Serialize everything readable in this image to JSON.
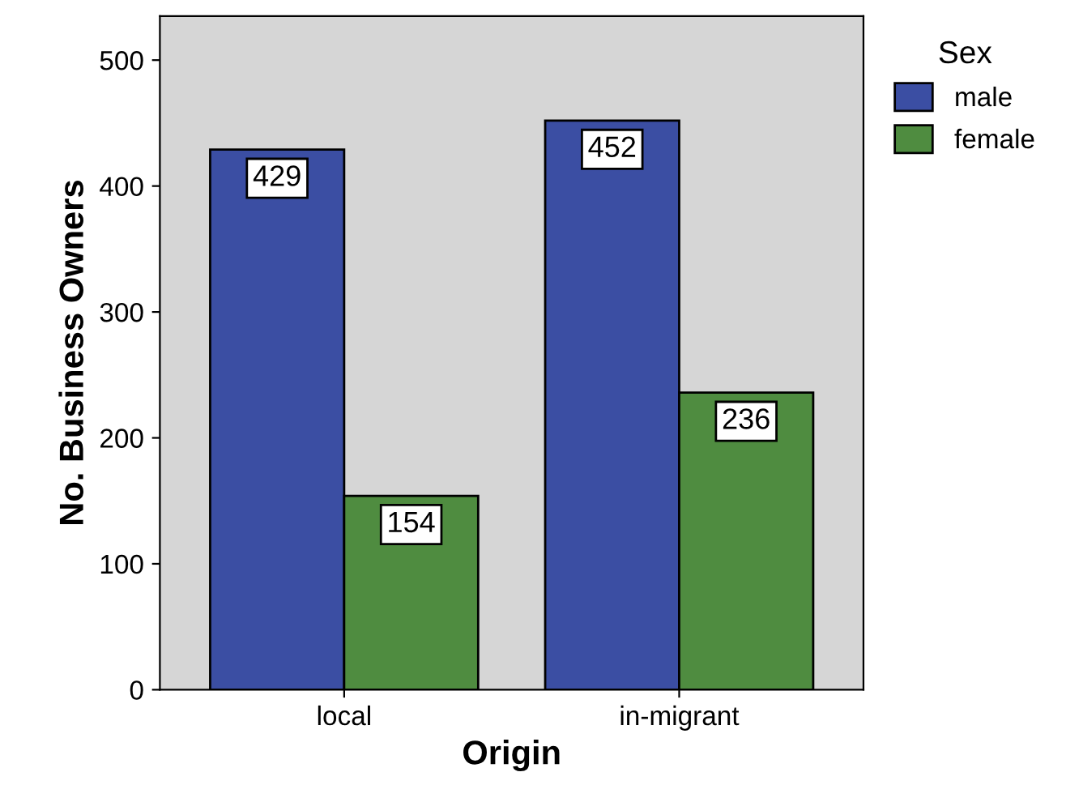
{
  "chart_data": {
    "type": "bar",
    "xlabel": "Origin",
    "ylabel": "No. Business Owners",
    "legend_title": "Sex",
    "categories": [
      "local",
      "in-migrant"
    ],
    "series": [
      {
        "name": "male",
        "color": "#3b4ea3",
        "values": [
          429,
          452
        ]
      },
      {
        "name": "female",
        "color": "#4f8c40",
        "values": [
          154,
          236
        ]
      }
    ],
    "ylim": [
      0,
      535
    ],
    "yticks": [
      0,
      100,
      200,
      300,
      400,
      500
    ],
    "data_labels": true,
    "legend": "right",
    "grid": false
  }
}
